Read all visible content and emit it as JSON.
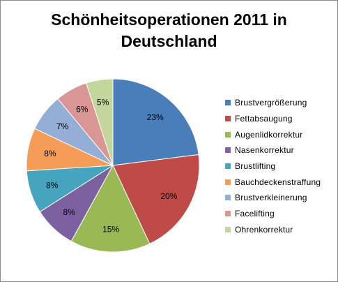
{
  "chart_data": {
    "type": "pie",
    "title_lines": [
      "Schönheitsoperationen 2011 in",
      "Deutschland"
    ],
    "legend_position": "right",
    "slices": [
      {
        "label": "Brustvergrößerung",
        "value": 23,
        "value_label": "23%",
        "color": "#4a7ebb"
      },
      {
        "label": "Fettabsaugung",
        "value": 20,
        "value_label": "20%",
        "color": "#be4b48"
      },
      {
        "label": "Augenlidkorrektur",
        "value": 15,
        "value_label": "15%",
        "color": "#98b954"
      },
      {
        "label": "Nasenkorrektur",
        "value": 8,
        "value_label": "8%",
        "color": "#7d60a0"
      },
      {
        "label": "Brustlifting",
        "value": 8,
        "value_label": "8%",
        "color": "#46a5be"
      },
      {
        "label": "Bauchdeckenstraffung",
        "value": 8,
        "value_label": "8%",
        "color": "#f59d56"
      },
      {
        "label": "Brustverkleinerung",
        "value": 7,
        "value_label": "7%",
        "color": "#94aed5"
      },
      {
        "label": "Facelifting",
        "value": 6,
        "value_label": "6%",
        "color": "#d99695"
      },
      {
        "label": "Ohrenkorrektur",
        "value": 5,
        "value_label": "5%",
        "color": "#c3d69b"
      }
    ]
  }
}
